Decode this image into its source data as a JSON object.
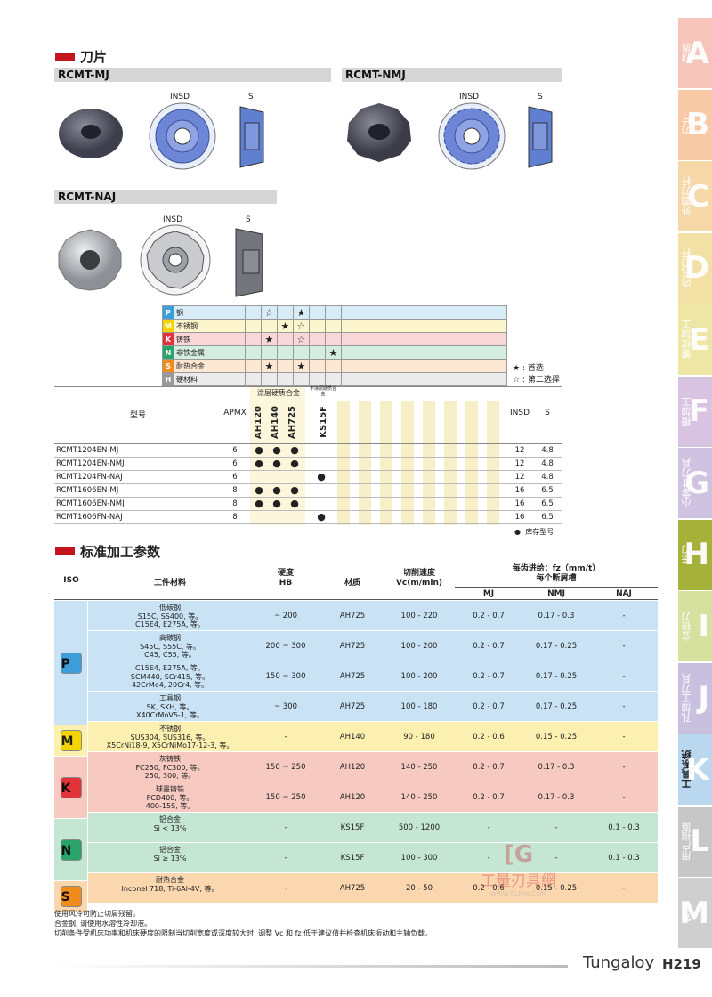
{
  "section1": {
    "title": "刀片"
  },
  "models": {
    "mj": "RCMT-MJ",
    "nmj": "RCMT-NMJ",
    "naj": "RCMT-NAJ"
  },
  "dims": {
    "insd": "INSD",
    "s": "S"
  },
  "grade_rows": [
    {
      "code": "P",
      "name": "钢",
      "color": "#3c9fd9",
      "marks": [
        "",
        "☆",
        "",
        "★",
        "",
        ""
      ]
    },
    {
      "code": "M",
      "name": "不锈钢",
      "color": "#f5d400",
      "marks": [
        "",
        "",
        "★",
        "☆",
        "",
        ""
      ]
    },
    {
      "code": "K",
      "name": "铸铁",
      "color": "#e2333a",
      "marks": [
        "",
        "★",
        "",
        "☆",
        "",
        ""
      ]
    },
    {
      "code": "N",
      "name": "非铁金属",
      "color": "#2aa36b",
      "marks": [
        "",
        "",
        "",
        "",
        "",
        "★"
      ]
    },
    {
      "code": "S",
      "name": "耐热合金",
      "color": "#ef8c1c",
      "marks": [
        "",
        "★",
        "",
        "★",
        "",
        ""
      ]
    },
    {
      "code": "H",
      "name": "硬材料",
      "color": "#999999",
      "marks": [
        "",
        "",
        "",
        "",
        "",
        ""
      ]
    }
  ],
  "legend": {
    "first": "★ : 首选",
    "second": "☆ : 第二选择",
    "stock": "●: 库存型号"
  },
  "inserts_table": {
    "h_model": "型号",
    "h_apmx": "APMX",
    "h_coated": "涂层硬质合金",
    "h_uncoated": "不涂层硬质合金",
    "grades": [
      "AH120",
      "AH140",
      "AH725",
      "KS15F"
    ],
    "h_insd": "INSD",
    "h_s": "S",
    "rows": [
      {
        "model": "RCMT1204EN-MJ",
        "apmx": "6",
        "g": [
          "●",
          "●",
          "●",
          ""
        ],
        "insd": "12",
        "s": "4.8"
      },
      {
        "model": "RCMT1204EN-NMJ",
        "apmx": "6",
        "g": [
          "●",
          "●",
          "●",
          ""
        ],
        "insd": "12",
        "s": "4.8"
      },
      {
        "model": "RCMT1204FN-NAJ",
        "apmx": "6",
        "g": [
          "",
          "",
          "",
          "●"
        ],
        "insd": "12",
        "s": "4.8"
      },
      {
        "model": "RCMT1606EN-MJ",
        "apmx": "8",
        "g": [
          "●",
          "●",
          "●",
          ""
        ],
        "insd": "16",
        "s": "6.5"
      },
      {
        "model": "RCMT1606EN-NMJ",
        "apmx": "8",
        "g": [
          "●",
          "●",
          "●",
          ""
        ],
        "insd": "16",
        "s": "6.5"
      },
      {
        "model": "RCMT1606FN-NAJ",
        "apmx": "8",
        "g": [
          "",
          "",
          "",
          "●"
        ],
        "insd": "16",
        "s": "6.5"
      }
    ]
  },
  "section2": {
    "title": "标准加工参数"
  },
  "params": {
    "headers": {
      "iso": "ISO",
      "material": "工件材料",
      "hardness": "硬度\nHB",
      "grade": "材质",
      "vc": "切削速度\nVc(m/min)",
      "fz": "每齿进给：fz（mm/t）\n每个断屑槽",
      "mj": "MJ",
      "nmj": "NMJ",
      "naj": "NAJ"
    },
    "rows": [
      {
        "iso": "P",
        "mat": "低碳钢\nS15C, SS400, 等。\nC15E4, E275A, 等。",
        "hb": "~ 200",
        "grade": "AH725",
        "vc": "100 - 220",
        "mj": "0.2 - 0.7",
        "nmj": "0.17 - 0.3",
        "naj": "-"
      },
      {
        "iso": "P",
        "mat": "高碳钢\nS45C, S55C, 等。\nC45, C55, 等。",
        "hb": "200 ~ 300",
        "grade": "AH725",
        "vc": "100 - 200",
        "mj": "0.2 - 0.7",
        "nmj": "0.17 - 0.25",
        "naj": "-"
      },
      {
        "iso": "P",
        "mat": "C15E4, E275A, 等。\nSCM440, SCr415, 等。\n42CrMo4, 20Cr4, 等。",
        "hb": "150 ~ 300",
        "grade": "AH725",
        "vc": "100 - 200",
        "mj": "0.2 - 0.7",
        "nmj": "0.17 - 0.25",
        "naj": "-"
      },
      {
        "iso": "P",
        "mat": "工具钢\nSK, SKH, 等。\nX40CrMoV5-1, 等。",
        "hb": "~ 300",
        "grade": "AH725",
        "vc": "100 - 180",
        "mj": "0.2 - 0.7",
        "nmj": "0.17 - 0.25",
        "naj": "-"
      },
      {
        "iso": "M",
        "mat": "不锈钢\nSUS304, SUS316, 等。\nX5CrNi18-9, X5CrNiMo17-12-3, 等。",
        "hb": "-",
        "grade": "AH140",
        "vc": "90 - 180",
        "mj": "0.2 - 0.6",
        "nmj": "0.15 - 0.25",
        "naj": "-"
      },
      {
        "iso": "K",
        "mat": "灰铸铁\nFC250, FC300, 等。\n250, 300, 等。",
        "hb": "150 ~ 250",
        "grade": "AH120",
        "vc": "140 - 250",
        "mj": "0.2 - 0.7",
        "nmj": "0.17 - 0.3",
        "naj": "-"
      },
      {
        "iso": "K",
        "mat": "球墨铸铁\nFCD400, 等。\n400-15S, 等。",
        "hb": "150 ~ 250",
        "grade": "AH120",
        "vc": "140 - 250",
        "mj": "0.2 - 0.7",
        "nmj": "0.17 - 0.3",
        "naj": "-"
      },
      {
        "iso": "N",
        "mat": "铝合金\nSi < 13%",
        "hb": "-",
        "grade": "KS15F",
        "vc": "500 - 1200",
        "mj": "-",
        "nmj": "-",
        "naj": "0.1 - 0.3"
      },
      {
        "iso": "N",
        "mat": "铝合金\nSi ≥ 13%",
        "hb": "-",
        "grade": "KS15F",
        "vc": "100 - 300",
        "mj": "-",
        "nmj": "-",
        "naj": "0.1 - 0.3"
      },
      {
        "iso": "S",
        "mat": "耐热合金\nInconel 718, Ti-6Al-4V, 等。",
        "hb": "-",
        "grade": "AH725",
        "vc": "20 - 50",
        "mj": "0.2 - 0.6",
        "nmj": "0.15 - 0.25",
        "naj": "-"
      }
    ]
  },
  "notes": [
    "使用风冷可防止切屑残留。",
    "合金钢, 请使用水溶性冷却液。",
    "切削条件受机床功率和机床硬度的限制当切削宽度或深度较大时, 调整 Vc 和 fz 低于建议值并检查机床振动和主轴负载。"
  ],
  "watermark": {
    "text": "工量刃具網",
    "url": "WWW.GLRJW.COM"
  },
  "footer": {
    "brand": "Tungaloy",
    "page": "H219"
  },
  "side_tabs": [
    {
      "letter": "A",
      "label": "材质",
      "color": "#f6c4b8"
    },
    {
      "letter": "B",
      "label": "刀片",
      "color": "#f8c9a6"
    },
    {
      "letter": "C",
      "label": "外圆刀杆",
      "color": "#f6d7a8"
    },
    {
      "letter": "D",
      "label": "内孔刀杆",
      "color": "#f3e0a5"
    },
    {
      "letter": "E",
      "label": "螺纹加工",
      "color": "#eee6a5"
    },
    {
      "letter": "F",
      "label": "槽加工",
      "color": "#d8c3e2"
    },
    {
      "letter": "G",
      "label": "小零件刀具",
      "color": "#cfc3e1"
    },
    {
      "letter": "H",
      "label": "铣刀",
      "color": "#a6b13a"
    },
    {
      "letter": "I",
      "label": "立铣刀",
      "color": "#d6e19f"
    },
    {
      "letter": "J",
      "label": "孔加工刀具",
      "color": "#c9c0e0"
    },
    {
      "letter": "K",
      "label": "工具系统",
      "color": "#b9d7ee"
    },
    {
      "letter": "L",
      "label": "用户指南",
      "color": "#c7c7c7"
    },
    {
      "letter": "M",
      "label": "索引",
      "color": "#cfcfcf"
    }
  ]
}
